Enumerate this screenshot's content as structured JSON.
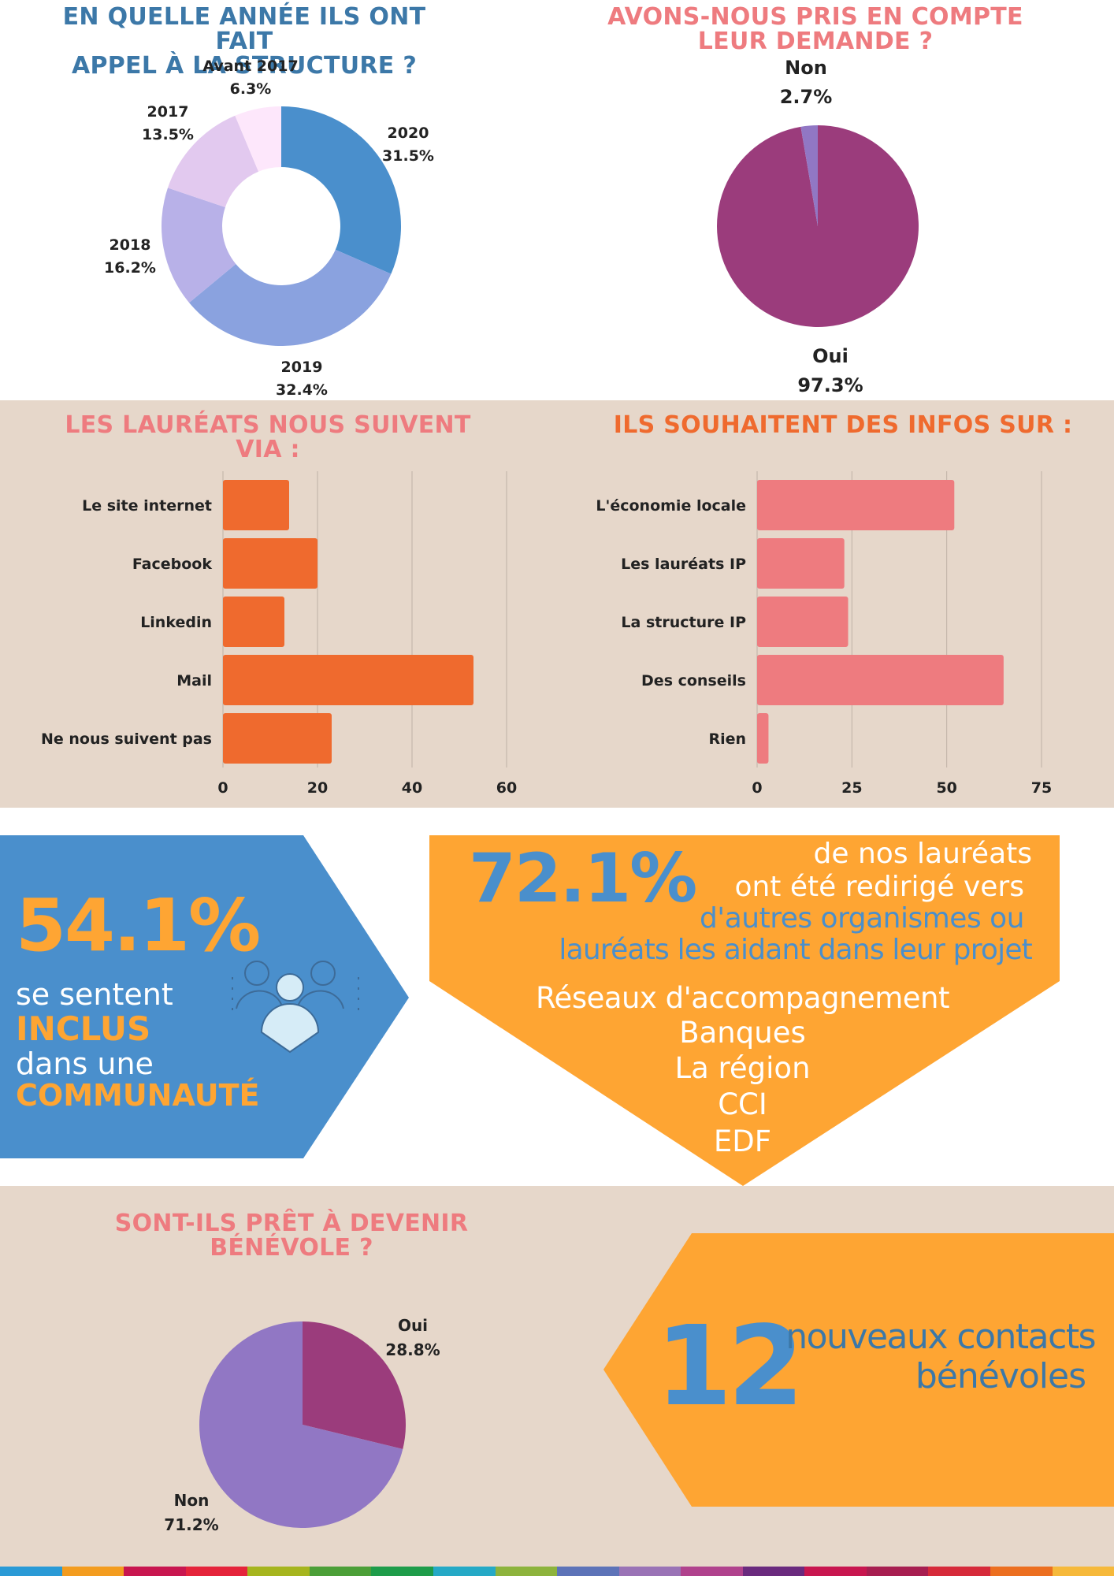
{
  "colors": {
    "beige": "#e6d7ca",
    "blue_title": "#3c78a8",
    "pink_title": "#ee7b7f",
    "orange_title": "#ef6a2e",
    "orange_bar": "#ef6a2e",
    "pink_bar": "#ee7b7f",
    "yellow": "#fea533",
    "blue_panel": "#4a8fcc",
    "purple": "#9b3c7c",
    "lavender": "#9177c4"
  },
  "sections": {
    "annee": {
      "title_line1": "EN QUELLE ANNÉE ILS ONT FAIT",
      "title_line2": "APPEL À LA STRUCTURE ?"
    },
    "demande": {
      "title_line1": "AVONS-NOUS PRIS EN COMPTE",
      "title_line2": "LEUR DEMANDE ?"
    },
    "suivent": {
      "title_line1": "LES LAURÉATS NOUS SUIVENT",
      "title_line2": "VIA :"
    },
    "infos": {
      "title_line1": "ILS SOUHAITENT DES INFOS SUR :"
    },
    "benevole": {
      "title_line1": "SONT-ILS PRÊT À DEVENIR",
      "title_line2": "BÉNÉVOLE ?"
    }
  },
  "chart_data": [
    {
      "type": "pie",
      "variant": "donut",
      "categories": [
        "2020",
        "2019",
        "2018",
        "2017",
        "Avant 2017"
      ],
      "values": [
        31.5,
        32.4,
        16.2,
        13.5,
        6.3
      ],
      "labels": [
        "31.5%",
        "32.4%",
        "16.2%",
        "13.5%",
        "6.3%"
      ],
      "colors": [
        "#4a8fcc",
        "#8aa2df",
        "#b8b1e8",
        "#e2c9ef",
        "#fde7fb"
      ]
    },
    {
      "type": "pie",
      "categories": [
        "Oui",
        "Non"
      ],
      "values": [
        97.3,
        2.7
      ],
      "labels": [
        "97.3%",
        "2.7%"
      ],
      "colors": [
        "#9b3c7c",
        "#9177c4"
      ]
    },
    {
      "type": "bar",
      "orientation": "horizontal",
      "categories": [
        "Le site internet",
        "Facebook",
        "Linkedin",
        "Mail",
        "Ne nous suivent pas"
      ],
      "values": [
        14,
        20,
        13,
        53,
        23
      ],
      "xlim": [
        0,
        60
      ],
      "ticks": [
        "0",
        "20",
        "40",
        "60"
      ],
      "grid": true,
      "color": "#ef6a2e"
    },
    {
      "type": "bar",
      "orientation": "horizontal",
      "categories": [
        "L'économie locale",
        "Les lauréats IP",
        "La structure IP",
        "Des conseils",
        "Rien"
      ],
      "values": [
        52,
        23,
        24,
        65,
        3
      ],
      "xlim": [
        0,
        75
      ],
      "ticks": [
        "0",
        "25",
        "50",
        "75"
      ],
      "grid": true,
      "color": "#ee7b7f"
    },
    {
      "type": "pie",
      "categories": [
        "Oui",
        "Non"
      ],
      "values": [
        28.8,
        71.2
      ],
      "labels": [
        "28.8%",
        "71.2%"
      ],
      "colors": [
        "#9b3c7c",
        "#9177c4"
      ]
    }
  ],
  "stats": {
    "inclus": {
      "percent": "54.1%",
      "line1": "se sentent",
      "line2": "INCLUS",
      "line3": "dans une",
      "line4": "COMMUNAUTÉ",
      "icon": "community-icon"
    },
    "redirige": {
      "percent": "72.1%",
      "line1": "de nos lauréats",
      "line2": "ont été redirigé vers",
      "line3": "d'autres organismes ou",
      "line4": "lauréats les aidant dans leur projet",
      "organismes": [
        "Réseaux d'accompagnement",
        "Banques",
        "La région",
        "CCI",
        "EDF"
      ]
    },
    "contacts": {
      "number": "12",
      "line1": "nouveaux contacts",
      "line2": "bénévoles"
    }
  },
  "ribbon_colors": [
    "#2a9ad6",
    "#f39c1f",
    "#c8164f",
    "#e5243b",
    "#a6b51e",
    "#4c9f38",
    "#1e9c4a",
    "#25a9c6",
    "#8db33c",
    "#5d73b8",
    "#9a73b6",
    "#b0428d",
    "#6a2a7e",
    "#c8164f",
    "#a71e50",
    "#d62a3a",
    "#ec6f20",
    "#f6b93b"
  ]
}
